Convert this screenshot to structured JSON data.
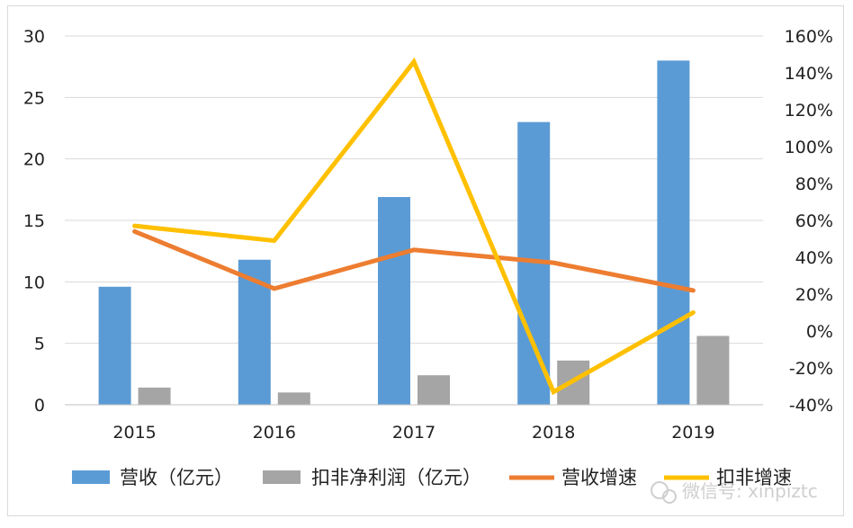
{
  "chart_data": {
    "type": "bar+line",
    "categories": [
      "2015",
      "2016",
      "2017",
      "2018",
      "2019"
    ],
    "series": [
      {
        "name": "营收（亿元）",
        "type": "bar",
        "axis": "left",
        "color": "#5b9bd5",
        "values": [
          9.6,
          11.8,
          16.9,
          23.0,
          28.0
        ]
      },
      {
        "name": "扣非净利润（亿元）",
        "type": "bar",
        "axis": "left",
        "color": "#a5a5a5",
        "values": [
          1.4,
          1.0,
          2.4,
          3.6,
          5.6
        ]
      },
      {
        "name": "营收增速",
        "type": "line",
        "axis": "right",
        "color": "#ed7d31",
        "values": [
          54,
          23,
          44,
          37,
          22
        ]
      },
      {
        "name": "扣非增速",
        "type": "line",
        "axis": "right",
        "color": "#ffc000",
        "values": [
          57,
          49,
          146,
          -33,
          10
        ]
      }
    ],
    "left_axis": {
      "min": 0,
      "max": 30,
      "step": 5,
      "ticks": [
        "0",
        "5",
        "10",
        "15",
        "20",
        "25",
        "30"
      ]
    },
    "right_axis": {
      "min": -40,
      "max": 160,
      "step": 20,
      "ticks": [
        "-40%",
        "-20%",
        "0%",
        "20%",
        "40%",
        "60%",
        "80%",
        "100%",
        "120%",
        "140%",
        "160%"
      ]
    },
    "grid": true,
    "legend_position": "bottom"
  },
  "watermark": "微信号: xinpiztc"
}
